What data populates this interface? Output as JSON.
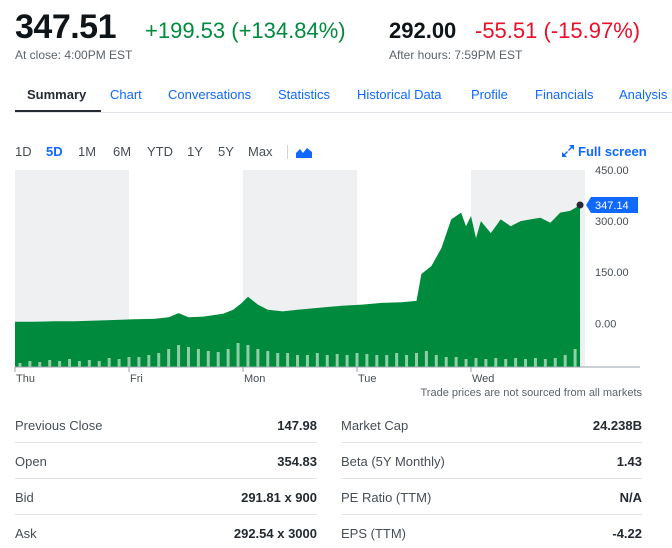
{
  "quote": {
    "price": "347.51",
    "change": "+199.53 (+134.84%)",
    "close_note": "At close: 4:00PM EST",
    "after_hours_price": "292.00",
    "after_hours_change": "-55.51 (-15.97%)",
    "after_hours_note": "After hours: 7:59PM EST",
    "up_color": "#008a3d",
    "down_color": "#eb0f29"
  },
  "tabs": [
    "Summary",
    "Chart",
    "Conversations",
    "Statistics",
    "Historical Data",
    "Profile",
    "Financials",
    "Analysis"
  ],
  "ranges": [
    "1D",
    "5D",
    "1M",
    "6M",
    "YTD",
    "1Y",
    "5Y",
    "Max"
  ],
  "active_range": "5D",
  "chart_type_icon": "mountain-chart-icon",
  "fullscreen_label": "Full screen",
  "chart_data": {
    "type": "area",
    "days": [
      "Thu",
      "Fri",
      "Mon",
      "Tue",
      "Wed"
    ],
    "y_ticks": [
      "450.00",
      "300.00",
      "150.00",
      "0.00"
    ],
    "ylim": [
      -128,
      450
    ],
    "last_price_label": "347.14",
    "fill_color": "#008a3d",
    "price": [
      [
        0,
        5
      ],
      [
        2,
        5
      ],
      [
        4,
        6
      ],
      [
        6,
        6
      ],
      [
        8,
        8
      ],
      [
        10,
        10
      ],
      [
        12,
        12
      ],
      [
        14,
        13
      ],
      [
        15.5,
        18
      ],
      [
        16.5,
        30
      ],
      [
        17.5,
        18
      ],
      [
        19,
        20
      ],
      [
        21,
        28
      ],
      [
        22,
        40
      ],
      [
        22.8,
        58
      ],
      [
        23.5,
        78
      ],
      [
        24.5,
        55
      ],
      [
        25.5,
        40
      ],
      [
        27,
        35
      ],
      [
        28.5,
        40
      ],
      [
        30,
        44
      ],
      [
        31.5,
        48
      ],
      [
        33,
        52
      ],
      [
        35,
        55
      ],
      [
        37,
        60
      ],
      [
        39,
        62
      ],
      [
        40.5,
        66
      ],
      [
        41,
        145
      ],
      [
        42,
        168
      ],
      [
        43,
        220
      ],
      [
        44,
        305
      ],
      [
        45,
        325
      ],
      [
        45.5,
        285
      ],
      [
        46,
        315
      ],
      [
        46.5,
        250
      ],
      [
        47,
        300
      ],
      [
        48,
        265
      ],
      [
        49,
        305
      ],
      [
        50,
        285
      ],
      [
        51,
        300
      ],
      [
        52,
        305
      ],
      [
        53,
        310
      ],
      [
        54,
        295
      ],
      [
        54.5,
        310
      ],
      [
        55,
        325
      ],
      [
        56,
        330
      ],
      [
        57,
        347
      ]
    ],
    "volume": [
      [
        0.5,
        4
      ],
      [
        1.5,
        6
      ],
      [
        2.5,
        5
      ],
      [
        3.5,
        7
      ],
      [
        4.5,
        6
      ],
      [
        5.5,
        8
      ],
      [
        6.5,
        6
      ],
      [
        7.5,
        7
      ],
      [
        8.5,
        6
      ],
      [
        9.5,
        9
      ],
      [
        10.5,
        8
      ],
      [
        11.5,
        10
      ],
      [
        12.5,
        10
      ],
      [
        13.5,
        12
      ],
      [
        14.5,
        14
      ],
      [
        15.5,
        18
      ],
      [
        16.5,
        22
      ],
      [
        17.5,
        20
      ],
      [
        18.5,
        18
      ],
      [
        19.5,
        16
      ],
      [
        20.5,
        15
      ],
      [
        21.5,
        18
      ],
      [
        22.5,
        24
      ],
      [
        23.5,
        22
      ],
      [
        24.5,
        18
      ],
      [
        25.5,
        16
      ],
      [
        26.5,
        14
      ],
      [
        27.5,
        14
      ],
      [
        28.5,
        12
      ],
      [
        29.5,
        12
      ],
      [
        30.5,
        14
      ],
      [
        31.5,
        12
      ],
      [
        32.5,
        13
      ],
      [
        33.5,
        12
      ],
      [
        34.5,
        14
      ],
      [
        35.5,
        13
      ],
      [
        36.5,
        12
      ],
      [
        37.5,
        12
      ],
      [
        38.5,
        14
      ],
      [
        39.5,
        12
      ],
      [
        40.5,
        14
      ],
      [
        41.5,
        16
      ],
      [
        42.5,
        12
      ],
      [
        43.5,
        10
      ],
      [
        44.5,
        10
      ],
      [
        45.5,
        8
      ],
      [
        46.5,
        9
      ],
      [
        47.5,
        8
      ],
      [
        48.5,
        9
      ],
      [
        49.5,
        8
      ],
      [
        50.5,
        9
      ],
      [
        51.5,
        8
      ],
      [
        52.5,
        9
      ],
      [
        53.5,
        8
      ],
      [
        54.5,
        9
      ],
      [
        55.5,
        12
      ],
      [
        56.5,
        18
      ]
    ]
  },
  "disclaimer": "Trade prices are not sourced from all markets",
  "stats_left": [
    {
      "label": "Previous Close",
      "value": "147.98"
    },
    {
      "label": "Open",
      "value": "354.83"
    },
    {
      "label": "Bid",
      "value": "291.81 x 900"
    },
    {
      "label": "Ask",
      "value": "292.54 x 3000"
    }
  ],
  "stats_right": [
    {
      "label": "Market Cap",
      "value": "24.238B"
    },
    {
      "label": "Beta (5Y Monthly)",
      "value": "1.43"
    },
    {
      "label": "PE Ratio (TTM)",
      "value": "N/A"
    },
    {
      "label": "EPS (TTM)",
      "value": "-4.22"
    }
  ]
}
